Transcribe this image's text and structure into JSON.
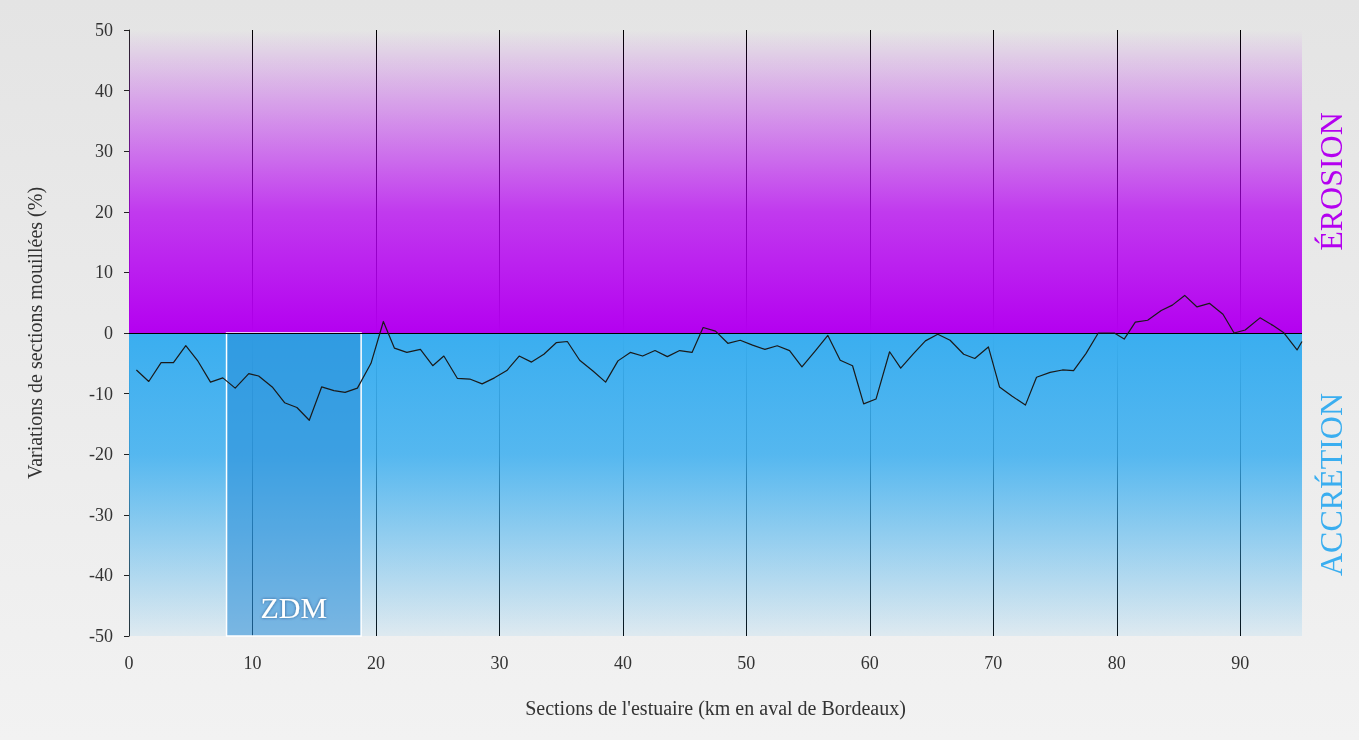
{
  "chart_data": {
    "type": "line",
    "xlabel": "Sections de l'estuaire (km en aval de Bordeaux)",
    "ylabel": "Variations de sections mouillées (%)",
    "x": [
      0.6,
      1.6,
      2.6,
      3.6,
      4.6,
      5.6,
      6.6,
      7.6,
      8.6,
      9.7,
      10.5,
      11.6,
      12.6,
      13.6,
      14.6,
      15.6,
      16.6,
      17.5,
      18.5,
      19.6,
      20.6,
      21.5,
      22.5,
      23.6,
      24.6,
      25.5,
      26.6,
      27.6,
      28.6,
      29.6,
      30.6,
      31.6,
      32.6,
      33.6,
      34.6,
      35.5,
      36.5,
      37.6,
      38.6,
      39.6,
      40.6,
      41.6,
      42.6,
      43.6,
      44.6,
      45.6,
      46.5,
      47.5,
      48.5,
      49.5,
      50.5,
      51.5,
      52.5,
      53.5,
      54.5,
      55.6,
      56.6,
      57.6,
      58.6,
      59.5,
      60.5,
      61.6,
      62.5,
      63.5,
      64.5,
      65.5,
      66.5,
      67.6,
      68.5,
      69.6,
      70.5,
      71.5,
      72.6,
      73.5,
      74.6,
      75.6,
      76.5,
      77.5,
      78.5,
      79.8,
      80.6,
      81.5,
      82.5,
      83.6,
      84.5,
      85.5,
      86.5,
      87.5,
      88.6,
      89.5,
      90.4,
      91.6,
      92.6,
      93.5,
      94.6,
      95
    ],
    "series": [
      {
        "color": "#1a1a1a",
        "values": [
          -6.1,
          -8.0,
          -4.9,
          -4.9,
          -2.1,
          -4.7,
          -8.1,
          -7.4,
          -9.1,
          -6.7,
          -7.1,
          -8.9,
          -11.5,
          -12.3,
          -14.4,
          -8.9,
          -9.5,
          -9.8,
          -9.1,
          -5.0,
          1.9,
          -2.5,
          -3.2,
          -2.7,
          -5.4,
          -3.8,
          -7.5,
          -7.6,
          -8.4,
          -7.4,
          -6.2,
          -3.8,
          -4.8,
          -3.5,
          -1.6,
          -1.4,
          -4.5,
          -6.3,
          -8.1,
          -4.6,
          -3.2,
          -3.8,
          -2.9,
          -3.9,
          -2.9,
          -3.2,
          0.9,
          0.3,
          -1.7,
          -1.2,
          -2.0,
          -2.7,
          -2.1,
          -2.9,
          -5.6,
          -2.9,
          -0.4,
          -4.5,
          -5.4,
          -11.7,
          -10.9,
          -3.1,
          -5.8,
          -3.5,
          -1.3,
          -0.2,
          -1.2,
          -3.5,
          -4.2,
          -2.3,
          -8.9,
          -10.4,
          -11.9,
          -7.3,
          -6.5,
          -6.1,
          -6.2,
          -3.4,
          0.0,
          0.0,
          -1.0,
          1.8,
          2.1,
          3.7,
          4.6,
          6.2,
          4.3,
          4.9,
          3.1,
          0.0,
          0.5,
          2.5,
          1.3,
          0.1,
          -2.8,
          -1.4
        ]
      }
    ],
    "xlim": [
      0,
      95
    ],
    "xticks": [
      0,
      10,
      20,
      30,
      40,
      50,
      60,
      70,
      80,
      90
    ],
    "ylim": [
      -50,
      50
    ],
    "yticks": [
      -50,
      -40,
      -30,
      -20,
      -10,
      0,
      10,
      20,
      30,
      40,
      50
    ],
    "grid": "x",
    "marker": "none",
    "line_style": "solid",
    "ref_lines": [
      {
        "axis": "y",
        "value": 0,
        "color": "#000000"
      }
    ],
    "bands": [
      {
        "axis": "y",
        "from": 0,
        "to": 50,
        "label": "ÉROSION",
        "color": "#b400f0"
      },
      {
        "axis": "y",
        "from": -50,
        "to": 0,
        "label": "ACCRÉTION",
        "color": "#3aaef0"
      },
      {
        "axis": "x",
        "from": 7.9,
        "to": 18.8,
        "label": "ZDM",
        "color": "#ffffff"
      }
    ]
  }
}
